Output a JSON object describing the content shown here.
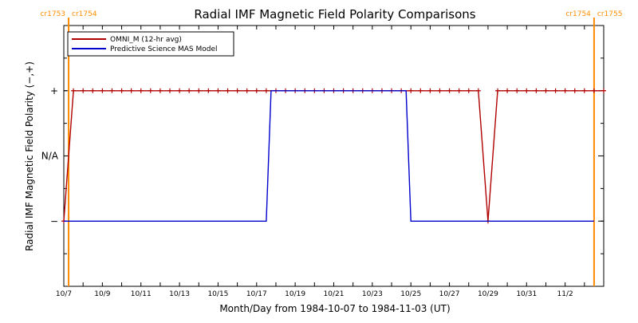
{
  "chart_data": {
    "type": "line",
    "title": "Radial IMF Magnetic Field Polarity Comparisons",
    "xlabel": "Month/Day from 1984-10-07 to 1984-11-03 (UT)",
    "ylabel": "Radial IMF Magnetic Field Polarity (−,+)",
    "x_unit": "date",
    "xlim": [
      "1984-10-07",
      "1984-11-04"
    ],
    "ylim": [
      -2,
      2
    ],
    "y_ticks": [
      {
        "value": 1,
        "label": "+"
      },
      {
        "value": 0,
        "label": "N/A"
      },
      {
        "value": -1,
        "label": "−"
      }
    ],
    "x_tick_labels": [
      "10/7",
      "10/9",
      "10/11",
      "10/13",
      "10/15",
      "10/17",
      "10/19",
      "10/21",
      "10/23",
      "10/25",
      "10/27",
      "10/29",
      "10/31",
      "11/2"
    ],
    "x_tick_dates": [
      "1984-10-07",
      "1984-10-09",
      "1984-10-11",
      "1984-10-13",
      "1984-10-15",
      "1984-10-17",
      "1984-10-19",
      "1984-10-21",
      "1984-10-23",
      "1984-10-25",
      "1984-10-27",
      "1984-10-29",
      "1984-10-31",
      "1984-11-02"
    ],
    "carrington_lines": [
      {
        "date": "1984-10-07 06:00",
        "labels": [
          "cr1753",
          "cr1754"
        ]
      },
      {
        "date": "1984-11-03 12:00",
        "labels": [
          "cr1754",
          "cr1755"
        ]
      }
    ],
    "legend": {
      "position": "top-left"
    },
    "grid": false,
    "series": [
      {
        "name": "OMNI_M (12-hr avg)",
        "color": "#b00000",
        "marker": "+",
        "x": [
          "1984-10-07 00:00",
          "1984-10-07 12:00",
          "1984-10-08 00:00",
          "1984-10-08 12:00",
          "1984-10-09 00:00",
          "1984-10-09 12:00",
          "1984-10-10 00:00",
          "1984-10-10 12:00",
          "1984-10-11 00:00",
          "1984-10-11 12:00",
          "1984-10-12 00:00",
          "1984-10-12 12:00",
          "1984-10-13 00:00",
          "1984-10-13 12:00",
          "1984-10-14 00:00",
          "1984-10-14 12:00",
          "1984-10-15 00:00",
          "1984-10-15 12:00",
          "1984-10-16 00:00",
          "1984-10-16 12:00",
          "1984-10-17 00:00",
          "1984-10-17 12:00",
          "1984-10-18 00:00",
          "1984-10-18 12:00",
          "1984-10-19 00:00",
          "1984-10-19 12:00",
          "1984-10-20 00:00",
          "1984-10-20 12:00",
          "1984-10-21 00:00",
          "1984-10-21 12:00",
          "1984-10-22 00:00",
          "1984-10-22 12:00",
          "1984-10-23 00:00",
          "1984-10-23 12:00",
          "1984-10-24 00:00",
          "1984-10-24 12:00",
          "1984-10-25 00:00",
          "1984-10-25 12:00",
          "1984-10-26 00:00",
          "1984-10-26 12:00",
          "1984-10-27 00:00",
          "1984-10-27 12:00",
          "1984-10-28 00:00",
          "1984-10-28 12:00",
          "1984-10-29 00:00",
          "1984-10-29 12:00",
          "1984-10-30 00:00",
          "1984-10-30 12:00",
          "1984-10-31 00:00",
          "1984-10-31 12:00",
          "1984-11-01 00:00",
          "1984-11-01 12:00",
          "1984-11-02 00:00",
          "1984-11-02 12:00",
          "1984-11-03 00:00",
          "1984-11-03 12:00",
          "1984-11-04 00:00"
        ],
        "y": [
          -1,
          1,
          1,
          1,
          1,
          1,
          1,
          1,
          1,
          1,
          1,
          1,
          1,
          1,
          1,
          1,
          1,
          1,
          1,
          1,
          1,
          1,
          1,
          1,
          1,
          1,
          1,
          1,
          1,
          1,
          1,
          1,
          1,
          1,
          1,
          1,
          1,
          1,
          1,
          1,
          1,
          1,
          1,
          1,
          -1,
          1,
          1,
          1,
          1,
          1,
          1,
          1,
          1,
          1,
          1,
          1,
          1
        ]
      },
      {
        "name": "Predictive Science MAS Model",
        "color": "#0000cc",
        "marker": "",
        "x": [
          "1984-10-07 00:00",
          "1984-10-17 12:00",
          "1984-10-17 18:00",
          "1984-10-24 18:00",
          "1984-10-25 00:00",
          "1984-11-03 12:00"
        ],
        "y": [
          -1,
          -1,
          1,
          1,
          -1,
          -1
        ]
      }
    ]
  }
}
